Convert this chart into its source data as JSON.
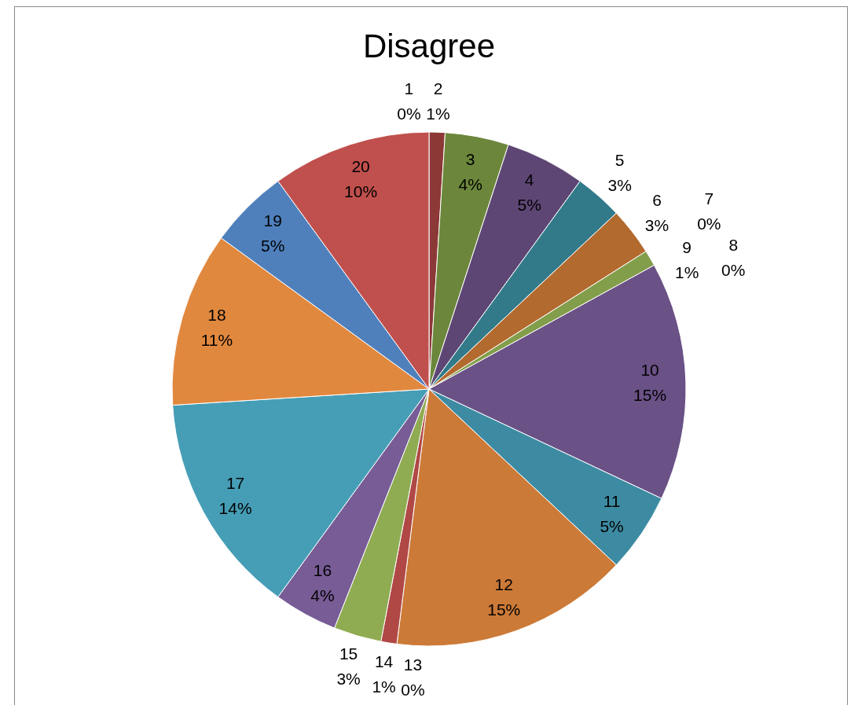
{
  "chart_data": {
    "type": "pie",
    "title": "Disagree",
    "categories": [
      "1",
      "2",
      "3",
      "4",
      "5",
      "6",
      "7",
      "8",
      "9",
      "10",
      "11",
      "12",
      "13",
      "14",
      "15",
      "16",
      "17",
      "18",
      "19",
      "20"
    ],
    "values": [
      0,
      1,
      4,
      5,
      3,
      3,
      0,
      0,
      1,
      15,
      5,
      15,
      0,
      1,
      3,
      4,
      14,
      11,
      5,
      10
    ],
    "value_labels": [
      "0%",
      "1%",
      "4%",
      "5%",
      "3%",
      "3%",
      "0%",
      "0%",
      "1%",
      "15%",
      "5%",
      "15%",
      "0%",
      "1%",
      "3%",
      "4%",
      "14%",
      "11%",
      "5%",
      "10%"
    ],
    "colors": [
      "#2c4d75",
      "#8c3836",
      "#6c873b",
      "#5d4674",
      "#327a8a",
      "#b36a2f",
      "#3e6ca6",
      "#a6403d",
      "#839e4a",
      "#6a5186",
      "#3d8ba3",
      "#cc7a38",
      "#4a76ac",
      "#b04846",
      "#8fac52",
      "#775c96",
      "#469eb6",
      "#e1883f",
      "#4f80bc",
      "#c0504d"
    ]
  }
}
